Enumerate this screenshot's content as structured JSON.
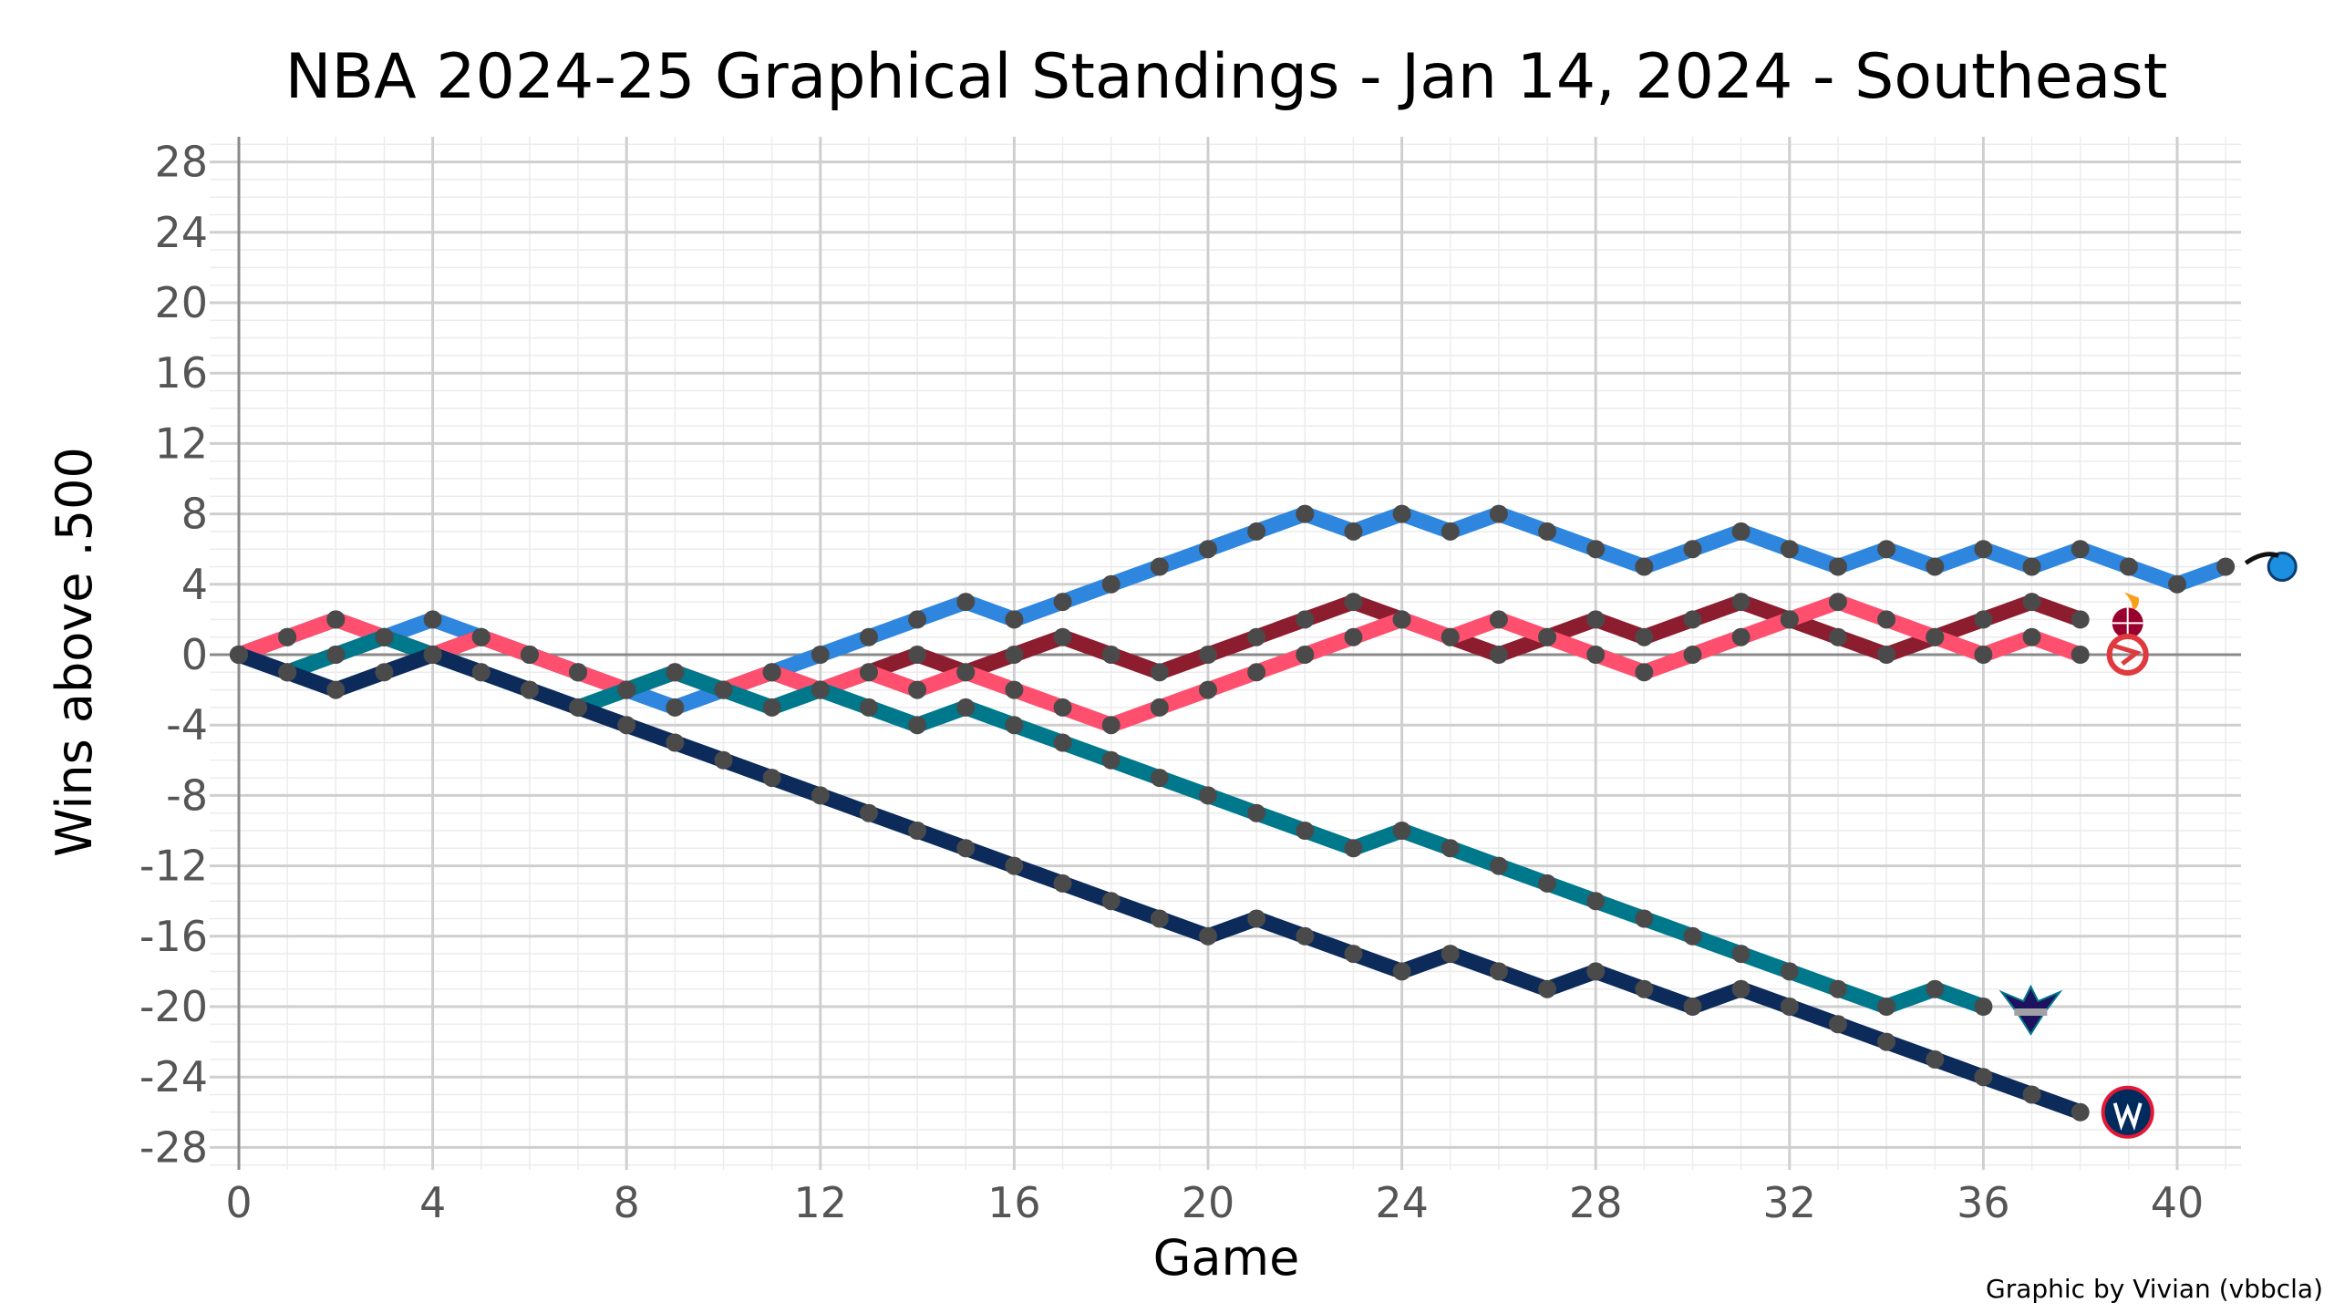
{
  "chart_data": {
    "type": "line",
    "title": "NBA 2024-25 Graphical Standings - Jan 14, 2024 - Southeast",
    "xlabel": "Game",
    "ylabel": "Wins above .500",
    "caption": "Graphic by Vivian (vbbcla)",
    "xlim": [
      0,
      41.5
    ],
    "ylim": [
      -29,
      29.5
    ],
    "xticks": [
      0,
      4,
      8,
      12,
      16,
      20,
      24,
      28,
      32,
      36,
      40
    ],
    "yticks": [
      -28,
      -24,
      -20,
      -16,
      -12,
      -8,
      -4,
      0,
      4,
      8,
      12,
      16,
      20,
      24,
      28
    ],
    "grid": true,
    "legend": "team logos at line ends",
    "series": [
      {
        "team": "Orlando Magic",
        "logo": "magic-logo-icon",
        "color": "#2E86DE",
        "values": [
          0,
          1,
          2,
          1,
          2,
          1,
          0,
          -1,
          -2,
          -3,
          -2,
          -1,
          0,
          1,
          2,
          3,
          2,
          3,
          4,
          5,
          6,
          7,
          8,
          7,
          8,
          7,
          8,
          7,
          6,
          5,
          6,
          7,
          6,
          5,
          6,
          5,
          6,
          5,
          6,
          5,
          4,
          5
        ]
      },
      {
        "team": "Miami Heat",
        "logo": "heat-logo-icon",
        "color": "#8C1D2E",
        "values": [
          0,
          -1,
          0,
          1,
          0,
          1,
          0,
          -1,
          -2,
          -1,
          -2,
          -1,
          -2,
          -1,
          0,
          -1,
          0,
          1,
          0,
          -1,
          0,
          1,
          2,
          3,
          2,
          1,
          0,
          1,
          2,
          1,
          2,
          3,
          2,
          1,
          0,
          1,
          2,
          3,
          2
        ]
      },
      {
        "team": "Atlanta Hawks",
        "logo": "hawks-logo-icon",
        "color": "#FF4F6E",
        "values": [
          0,
          1,
          2,
          1,
          0,
          1,
          0,
          -1,
          -2,
          -1,
          -2,
          -1,
          -2,
          -1,
          -2,
          -1,
          -2,
          -3,
          -4,
          -3,
          -2,
          -1,
          0,
          1,
          2,
          1,
          2,
          1,
          0,
          -1,
          0,
          1,
          2,
          3,
          2,
          1,
          0,
          1,
          0
        ]
      },
      {
        "team": "Charlotte Hornets",
        "logo": "hornets-logo-icon",
        "color": "#00788C",
        "values": [
          0,
          -1,
          0,
          1,
          0,
          -1,
          -2,
          -3,
          -2,
          -1,
          -2,
          -3,
          -2,
          -3,
          -4,
          -3,
          -4,
          -5,
          -6,
          -7,
          -8,
          -9,
          -10,
          -11,
          -10,
          -11,
          -12,
          -13,
          -14,
          -15,
          -16,
          -17,
          -18,
          -19,
          -20,
          -19,
          -20
        ]
      },
      {
        "team": "Washington Wizards",
        "logo": "wizards-logo-icon",
        "color": "#0C2A5A",
        "values": [
          0,
          -1,
          -2,
          -1,
          0,
          -1,
          -2,
          -3,
          -4,
          -5,
          -6,
          -7,
          -8,
          -9,
          -10,
          -11,
          -12,
          -13,
          -14,
          -15,
          -16,
          -15,
          -16,
          -17,
          -18,
          -17,
          -18,
          -19,
          -18,
          -19,
          -20,
          -19,
          -20,
          -21,
          -22,
          -23,
          -24,
          -25,
          -26
        ]
      }
    ]
  }
}
